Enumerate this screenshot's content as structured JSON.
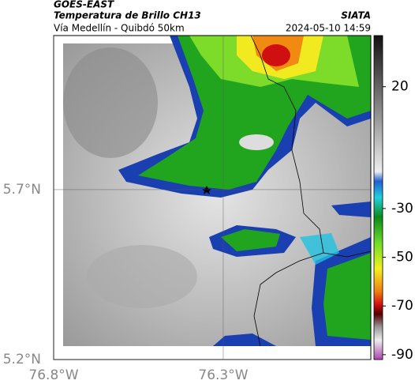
{
  "header": {
    "satellite": "GOES-EAST",
    "title": "Temperatura de Brillo CH13",
    "subtitle": "Vía Medellín - Quibdó 50km",
    "source": "SIATA",
    "timestamp": "2024-05-10 14:59"
  },
  "map": {
    "xlim": [
      -76.8,
      -75.865
    ],
    "ylim": [
      5.2,
      6.153
    ],
    "xticks": [
      {
        "value": -76.8,
        "label": "76.8°W"
      },
      {
        "value": -76.3,
        "label": "76.3°W"
      }
    ],
    "yticks": [
      {
        "value": 5.2,
        "label": "5.2°N"
      },
      {
        "value": 5.7,
        "label": "5.7°N"
      }
    ]
  },
  "colorbar": {
    "lim": [
      -92,
      41
    ],
    "ticks": [
      20,
      -30,
      -50,
      -70,
      -90
    ]
  }
}
